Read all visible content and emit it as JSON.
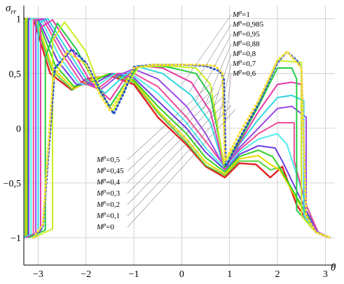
{
  "chart_data": {
    "type": "line",
    "title": "",
    "ylabel": "σrr",
    "ylabel_main": "σ",
    "ylabel_sub": "rr",
    "xlabel": "θ",
    "xlim": [
      -3.3,
      3.2
    ],
    "ylim": [
      -1.25,
      1.12
    ],
    "x_ticks": [
      -3,
      -2,
      -1,
      0,
      1,
      2,
      3
    ],
    "x_tick_labels": [
      "−3",
      "−2",
      "−1",
      "0",
      "1",
      "2",
      "3"
    ],
    "y_ticks": [
      1,
      0.5,
      0,
      -0.5,
      -1
    ],
    "y_tick_labels": [
      "1",
      "0,5",
      "0",
      "−0,5",
      "−1"
    ],
    "grid": true,
    "legend": "annotations",
    "series": [
      {
        "name": "M^p=1",
        "label_main": "M",
        "label_sup": "p",
        "label_value": "=1",
        "label_group": "upper",
        "color": "#ffe033",
        "dotted": true,
        "x": [
          -3.1,
          -2.9,
          -2.7,
          -2.4,
          -2.0,
          -1.7,
          -1.5,
          -1.3,
          -1.0,
          -0.6,
          0.0,
          0.4,
          0.7,
          0.85,
          0.9,
          1.2,
          1.6,
          2.0,
          2.2,
          2.5,
          2.6,
          2.8,
          3.1
        ],
        "y": [
          -1.0,
          -0.88,
          0.42,
          0.7,
          0.58,
          0.3,
          0.16,
          0.3,
          0.55,
          0.58,
          0.58,
          0.58,
          0.57,
          0.5,
          -0.3,
          -0.05,
          0.25,
          0.62,
          0.7,
          0.55,
          -0.8,
          -0.95,
          -1.0
        ]
      },
      {
        "name": "M^p=0,985",
        "label_main": "M",
        "label_sup": "p",
        "label_value": "=0,985",
        "label_group": "upper",
        "color": "#2550c8",
        "dotted": true,
        "x": [
          -3.1,
          -2.9,
          -2.65,
          -2.3,
          -2.0,
          -1.7,
          -1.42,
          -1.2,
          -1.0,
          -0.6,
          0.0,
          0.5,
          0.8,
          0.88,
          0.92,
          1.2,
          1.6,
          2.0,
          2.2,
          2.4,
          2.5,
          2.6,
          2.8,
          3.1
        ],
        "y": [
          -1.0,
          -0.9,
          0.55,
          0.72,
          0.6,
          0.34,
          0.13,
          0.33,
          0.56,
          0.58,
          0.58,
          0.57,
          0.52,
          0.45,
          -0.35,
          -0.1,
          0.22,
          0.6,
          0.7,
          0.62,
          0.55,
          -0.8,
          -0.95,
          -1.0
        ]
      },
      {
        "name": "M^p=0,95",
        "label_main": "M",
        "label_sup": "p",
        "label_value": "=0,95",
        "label_group": "upper",
        "color": "#c8f020",
        "x": [
          -3.1,
          -2.7,
          -2.7,
          -2.45,
          -2.0,
          -1.7,
          -1.45,
          -1.2,
          -0.9,
          -0.3,
          0.3,
          0.6,
          0.88,
          1.2,
          1.6,
          2.0,
          2.5,
          2.5,
          2.8,
          3.1
        ],
        "y": [
          -1.0,
          -0.92,
          0.8,
          0.97,
          0.7,
          0.35,
          0.15,
          0.35,
          0.56,
          0.57,
          0.55,
          0.4,
          -0.33,
          -0.1,
          0.22,
          0.62,
          0.6,
          -0.8,
          -0.95,
          -1.0
        ]
      },
      {
        "name": "M^p=0,88",
        "label_main": "M",
        "label_sup": "p",
        "label_value": "=0,88",
        "label_group": "upper",
        "color": "#22cc44",
        "x": [
          -3.2,
          -2.85,
          -2.85,
          -2.6,
          -2.2,
          -1.8,
          -1.5,
          -1.2,
          -0.9,
          -0.3,
          0.3,
          0.6,
          0.9,
          1.2,
          1.6,
          2.0,
          2.3,
          2.4,
          2.4,
          2.8,
          3.1
        ],
        "y": [
          -1.0,
          -0.93,
          0.65,
          0.96,
          0.72,
          0.4,
          0.2,
          0.4,
          0.57,
          0.56,
          0.5,
          0.3,
          -0.36,
          -0.12,
          0.2,
          0.55,
          0.55,
          0.45,
          -0.75,
          -0.95,
          -1.0
        ]
      },
      {
        "name": "M^p=0,8",
        "label_main": "M",
        "label_sup": "p",
        "label_value": "=0,8",
        "label_group": "upper",
        "color": "#e838a8",
        "x": [
          -3.25,
          -2.95,
          -2.95,
          -2.7,
          -2.3,
          -1.9,
          -1.5,
          -1.2,
          -0.9,
          -0.4,
          0.2,
          0.6,
          0.9,
          1.2,
          1.6,
          2.0,
          2.3,
          2.5,
          2.5,
          2.8,
          3.1
        ],
        "y": [
          -1.0,
          -0.94,
          0.92,
          0.99,
          0.72,
          0.42,
          0.26,
          0.45,
          0.57,
          0.55,
          0.42,
          0.15,
          -0.38,
          -0.14,
          0.15,
          0.4,
          0.42,
          0.4,
          -0.8,
          -0.95,
          -1.0
        ]
      },
      {
        "name": "M^p=0,7",
        "label_main": "M",
        "label_sup": "p",
        "label_value": "=0,7",
        "label_group": "upper",
        "color": "#2fd8e0",
        "x": [
          -3.3,
          -3.0,
          -3.0,
          -2.8,
          -2.4,
          -2.0,
          -1.6,
          -1.2,
          -0.9,
          -0.4,
          0.2,
          0.6,
          0.9,
          1.2,
          1.6,
          2.0,
          2.3,
          2.55,
          2.55,
          2.8,
          3.1
        ],
        "y": [
          -1.0,
          -0.95,
          0.96,
          1.0,
          0.72,
          0.45,
          0.32,
          0.48,
          0.56,
          0.5,
          0.3,
          0.05,
          -0.38,
          -0.15,
          0.08,
          0.28,
          0.3,
          0.25,
          -0.8,
          -0.95,
          -1.0
        ]
      },
      {
        "name": "M^p=0,6",
        "label_main": "M",
        "label_sup": "p",
        "label_value": "=0,6",
        "label_group": "upper",
        "color": "#9a48e8",
        "x": [
          -3.3,
          -3.05,
          -3.05,
          -2.85,
          -2.45,
          -2.05,
          -1.7,
          -1.3,
          -1.0,
          -0.5,
          0.1,
          0.5,
          0.9,
          1.2,
          1.6,
          2.0,
          2.3,
          2.6,
          2.6,
          2.85,
          3.1
        ],
        "y": [
          -1.0,
          -0.96,
          0.98,
          1.0,
          0.7,
          0.44,
          0.35,
          0.49,
          0.54,
          0.45,
          0.2,
          -0.05,
          -0.36,
          -0.18,
          0.0,
          0.18,
          0.2,
          0.1,
          -0.8,
          -0.95,
          -1.0
        ]
      },
      {
        "name": "M^p=0,5",
        "label_main": "M",
        "label_sup": "p",
        "label_value": "=0,5",
        "label_group": "lower",
        "color": "#ee4d9a",
        "x": [
          -3.3,
          -3.1,
          -3.1,
          -2.9,
          -2.5,
          -2.1,
          -1.75,
          -1.35,
          -1.0,
          -0.5,
          0.1,
          0.5,
          0.9,
          1.2,
          1.6,
          2.0,
          2.35,
          2.35,
          2.6,
          2.85,
          3.1
        ],
        "y": [
          -1.0,
          -0.97,
          0.99,
          1.0,
          0.68,
          0.42,
          0.36,
          0.5,
          0.5,
          0.38,
          0.1,
          -0.12,
          -0.35,
          -0.2,
          -0.05,
          0.05,
          0.05,
          -0.3,
          -0.7,
          -0.95,
          -1.0
        ]
      },
      {
        "name": "M^p=0,45",
        "label_main": "M",
        "label_sup": "p",
        "label_value": "=0,45",
        "label_group": "lower",
        "color": "#50ecee",
        "x": [
          -3.3,
          -3.15,
          -3.15,
          -2.95,
          -2.55,
          -2.15,
          -1.8,
          -1.4,
          -1.0,
          -0.5,
          0.1,
          0.5,
          0.9,
          1.2,
          1.6,
          2.0,
          2.2,
          2.6,
          2.85,
          3.1
        ],
        "y": [
          -1.0,
          -0.97,
          1.0,
          1.0,
          0.65,
          0.41,
          0.38,
          0.5,
          0.48,
          0.32,
          0.05,
          -0.18,
          -0.37,
          -0.22,
          -0.1,
          -0.05,
          -0.15,
          -0.7,
          -0.95,
          -1.0
        ]
      },
      {
        "name": "M^p=0,4",
        "label_main": "M",
        "label_sup": "p",
        "label_value": "=0,4",
        "label_group": "lower",
        "color": "#6a3ae0",
        "x": [
          -3.3,
          -3.2,
          -3.2,
          -3.0,
          -2.6,
          -2.2,
          -1.85,
          -1.45,
          -1.0,
          -0.5,
          0.1,
          0.5,
          0.9,
          1.2,
          1.6,
          1.95,
          2.1,
          2.6,
          2.85,
          3.1
        ],
        "y": [
          -1.0,
          -0.98,
          1.0,
          1.0,
          0.62,
          0.4,
          0.4,
          0.5,
          0.46,
          0.25,
          0.0,
          -0.22,
          -0.38,
          -0.24,
          -0.16,
          -0.18,
          -0.3,
          -0.75,
          -0.95,
          -1.0
        ]
      },
      {
        "name": "M^p=0,3",
        "label_main": "M",
        "label_sup": "p",
        "label_value": "=0,3",
        "label_group": "lower",
        "color": "#30d020",
        "x": [
          -3.3,
          -3.22,
          -3.22,
          -3.02,
          -2.65,
          -2.25,
          -1.9,
          -1.5,
          -1.0,
          -0.5,
          0.1,
          0.5,
          0.9,
          1.2,
          1.6,
          1.9,
          2.05,
          2.6,
          2.85,
          3.1
        ],
        "y": [
          -1.0,
          -0.98,
          1.0,
          1.0,
          0.58,
          0.38,
          0.42,
          0.5,
          0.44,
          0.2,
          -0.05,
          -0.27,
          -0.4,
          -0.26,
          -0.2,
          -0.26,
          -0.36,
          -0.78,
          -0.95,
          -1.0
        ]
      },
      {
        "name": "M^p=0,2",
        "label_main": "M",
        "label_sup": "p",
        "label_value": "=0,2",
        "label_group": "lower",
        "color": "#e8d800",
        "x": [
          -3.3,
          -3.25,
          -3.25,
          -3.05,
          -2.7,
          -2.25,
          -1.95,
          -1.5,
          -1.0,
          -0.5,
          0.1,
          0.5,
          0.9,
          1.2,
          1.6,
          1.85,
          2.05,
          2.6,
          2.85,
          3.1
        ],
        "y": [
          -1.0,
          -0.99,
          1.0,
          1.0,
          0.55,
          0.36,
          0.43,
          0.5,
          0.43,
          0.16,
          -0.1,
          -0.31,
          -0.42,
          -0.28,
          -0.25,
          -0.33,
          -0.38,
          -0.8,
          -0.96,
          -1.0
        ]
      },
      {
        "name": "M^p=0,1",
        "label_main": "M",
        "label_sup": "p",
        "label_value": "=0,1",
        "label_group": "lower",
        "color": "#58d040",
        "x": [
          -3.3,
          -3.27,
          -3.27,
          -3.08,
          -2.72,
          -2.28,
          -1.95,
          -1.5,
          -1.0,
          -0.5,
          0.1,
          0.5,
          0.9,
          1.2,
          1.6,
          1.85,
          2.05,
          2.6,
          2.85,
          3.1
        ],
        "y": [
          -1.0,
          -0.99,
          1.0,
          1.0,
          0.53,
          0.35,
          0.44,
          0.49,
          0.42,
          0.14,
          -0.13,
          -0.34,
          -0.43,
          -0.3,
          -0.3,
          -0.38,
          -0.36,
          -0.8,
          -0.96,
          -1.0
        ]
      },
      {
        "name": "M^p=0",
        "label_main": "M",
        "label_sup": "p",
        "label_value": "=0",
        "label_group": "lower",
        "color": "#e02020",
        "x": [
          -3.3,
          -3.1,
          -2.75,
          -2.3,
          -2.0,
          -1.5,
          -1.0,
          -0.5,
          0.1,
          0.5,
          0.9,
          1.2,
          1.55,
          1.85,
          2.1,
          2.4,
          2.7,
          2.9,
          3.1
        ],
        "y": [
          1.0,
          1.0,
          0.5,
          0.35,
          0.45,
          0.48,
          0.4,
          0.1,
          -0.15,
          -0.35,
          -0.45,
          -0.32,
          -0.33,
          -0.45,
          -0.35,
          -0.7,
          -0.9,
          -0.97,
          -1.0
        ]
      }
    ]
  }
}
